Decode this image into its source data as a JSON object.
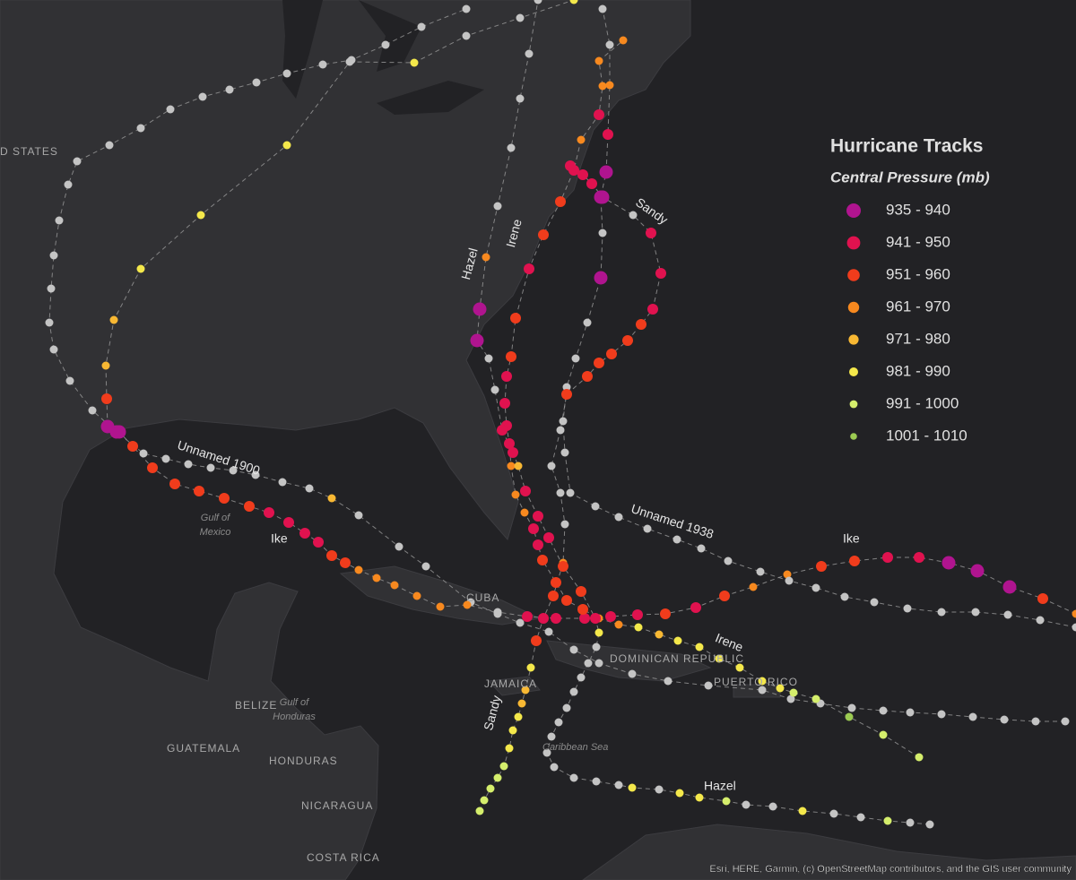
{
  "legend": {
    "title": "Hurricane Tracks",
    "subtitle": "Central Pressure (mb)",
    "items": [
      {
        "label": "935 - 940",
        "color": "#b0148f"
      },
      {
        "label": "941 - 950",
        "color": "#e0124f"
      },
      {
        "label": "951 - 960",
        "color": "#f03c1c"
      },
      {
        "label": "961 - 970",
        "color": "#f7891f"
      },
      {
        "label": "971 - 980",
        "color": "#f8b833"
      },
      {
        "label": "981 - 990",
        "color": "#f4e84b"
      },
      {
        "label": "991 - 1000",
        "color": "#d5ee6c"
      },
      {
        "label": "1001 - 1010",
        "color": "#9ccb52"
      }
    ]
  },
  "storm_labels": [
    "Unnamed 1900",
    "Ike",
    "Unnamed 1938",
    "Ike",
    "Irene",
    "Irene",
    "Sandy",
    "Sandy",
    "Hazel",
    "Hazel"
  ],
  "place_labels": [
    "D STATES",
    "Gulf of",
    "Mexico",
    "CUBA",
    "DOMINICAN REPUBLIC",
    "PUERTO RICO",
    "JAMAICA",
    "Caribbean Sea",
    "BELIZE",
    "Gulf of",
    "Honduras",
    "GUATEMALA",
    "HONDURAS",
    "NICARAGUA",
    "COSTA RICA"
  ],
  "attribution": "Esri, HERE, Garmin, (c) OpenStreetMap contributors, and the GIS user community"
}
